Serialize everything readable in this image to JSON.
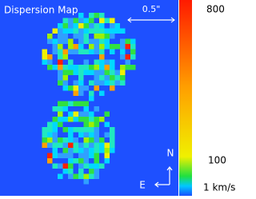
{
  "title": "Dispersion Map",
  "scale_bar": "0.5\"",
  "colorbar": {
    "top_label": "800",
    "mid_label": "100",
    "bottom_label": "1 km/s"
  },
  "compass": {
    "north": "N",
    "east": "E"
  }
}
